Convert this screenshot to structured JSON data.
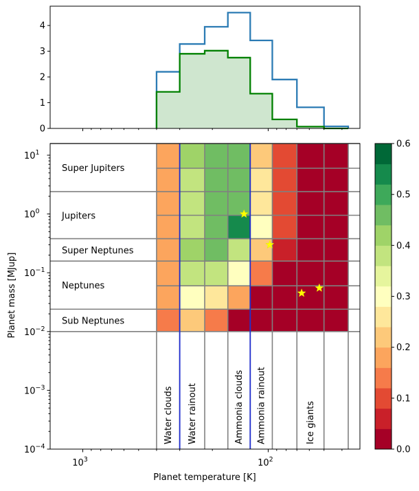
{
  "chart_data": [
    {
      "type": "histogram",
      "xscale": "log",
      "xlim": [
        1500,
        32
      ],
      "ylim": [
        0,
        4.75
      ],
      "yticks": [
        "0",
        "1",
        "2",
        "3",
        "4"
      ],
      "bin_edges": [
        400,
        300,
        220,
        165,
        125,
        95,
        70,
        50,
        37
      ],
      "series": [
        {
          "style": "step",
          "color": "#2b7bb4",
          "values": [
            2.2,
            3.28,
            3.95,
            4.5,
            3.42,
            1.9,
            0.82,
            0.08
          ]
        },
        {
          "style": "step-filled",
          "color": "#008000",
          "fill": "#cfe6cf",
          "values": [
            1.42,
            2.9,
            3.02,
            2.75,
            1.35,
            0.35,
            0.07,
            0.0
          ]
        }
      ]
    },
    {
      "type": "heatmap",
      "xscale": "log",
      "yscale": "log",
      "xlim": [
        1500,
        32
      ],
      "ylim": [
        0.0001,
        15.8
      ],
      "xlabel": "Planet temperature [K]",
      "ylabel": "Planet mass [MJup]",
      "xticks": [
        {
          "v": 1000,
          "base": "10",
          "exp": "3"
        },
        {
          "v": 100,
          "base": "10",
          "exp": "2"
        }
      ],
      "yticks": [
        {
          "v": 10,
          "base": "10",
          "exp": "1"
        },
        {
          "v": 1,
          "base": "10",
          "exp": "0"
        },
        {
          "v": 0.1,
          "base": "10",
          "exp": "−1"
        },
        {
          "v": 0.01,
          "base": "10",
          "exp": "−2"
        },
        {
          "v": 0.001,
          "base": "10",
          "exp": "−3"
        },
        {
          "v": 0.0001,
          "base": "10",
          "exp": "−4"
        }
      ],
      "t_edges": [
        400,
        300,
        220,
        165,
        125,
        95,
        70,
        50,
        37
      ],
      "m_edges": [
        0.01,
        0.024,
        0.06,
        0.158,
        0.38,
        0.95,
        2.4,
        6,
        15.8
      ],
      "grid_values": [
        [
          0.15,
          0.22,
          0.12,
          0.0,
          0.0,
          0.0,
          0.0,
          0.0
        ],
        [
          0.19,
          0.3,
          0.25,
          0.16,
          0.0,
          0.0,
          0.0,
          0.0
        ],
        [
          0.19,
          0.37,
          0.36,
          0.31,
          0.13,
          0.0,
          0.0,
          0.0
        ],
        [
          0.19,
          0.4,
          0.45,
          0.38,
          0.22,
          0.07,
          0.0,
          0.0
        ],
        [
          0.19,
          0.36,
          0.45,
          0.52,
          0.3,
          0.1,
          0.0,
          0.0
        ],
        [
          0.19,
          0.36,
          0.45,
          0.45,
          0.27,
          0.08,
          0.0,
          0.0
        ],
        [
          0.19,
          0.36,
          0.45,
          0.45,
          0.27,
          0.08,
          0.0,
          0.0
        ],
        [
          0.19,
          0.4,
          0.45,
          0.45,
          0.22,
          0.08,
          0.0,
          0.0
        ]
      ],
      "mass_classes": [
        {
          "label": "Super Jupiters",
          "m_low": 2.4,
          "m_high": 15.8
        },
        {
          "label": "Jupiters",
          "m_low": 0.38,
          "m_high": 2.4
        },
        {
          "label": "Super Neptunes",
          "m_low": 0.158,
          "m_high": 0.38
        },
        {
          "label": "Neptunes",
          "m_low": 0.024,
          "m_high": 0.158
        },
        {
          "label": "Sub Neptunes",
          "m_low": 0.01,
          "m_high": 0.024
        }
      ],
      "temperature_classes": [
        {
          "label": "Water clouds",
          "t_high": 400,
          "t_low": 300
        },
        {
          "label": "Water rainout",
          "t_high": 300,
          "t_low": 220
        },
        {
          "label": "Ammonia clouds",
          "t_high": 165,
          "t_low": 125
        },
        {
          "label": "Ammonia rainout",
          "t_high": 125,
          "t_low": 95
        },
        {
          "label": "Ice giants",
          "t_high": 70,
          "t_low": 50
        }
      ],
      "blue_lines_t": [
        300,
        125
      ],
      "stars": [
        {
          "t": 135,
          "m": 1.0
        },
        {
          "t": 98,
          "m": 0.3
        },
        {
          "t": 66,
          "m": 0.045
        },
        {
          "t": 53,
          "m": 0.055
        }
      ],
      "colorbar": {
        "min": 0.0,
        "max": 0.6,
        "ticks": [
          "0.0",
          "0.1",
          "0.2",
          "0.3",
          "0.4",
          "0.5",
          "0.6"
        ],
        "colors": [
          "#a50026",
          "#c92029",
          "#e34a33",
          "#f67b4a",
          "#fca55d",
          "#fdc97a",
          "#fee79b",
          "#ffffbf",
          "#e6f59d",
          "#c2e47f",
          "#9fd368",
          "#70bd63",
          "#3ea95a",
          "#158a4c",
          "#006837"
        ]
      }
    }
  ]
}
